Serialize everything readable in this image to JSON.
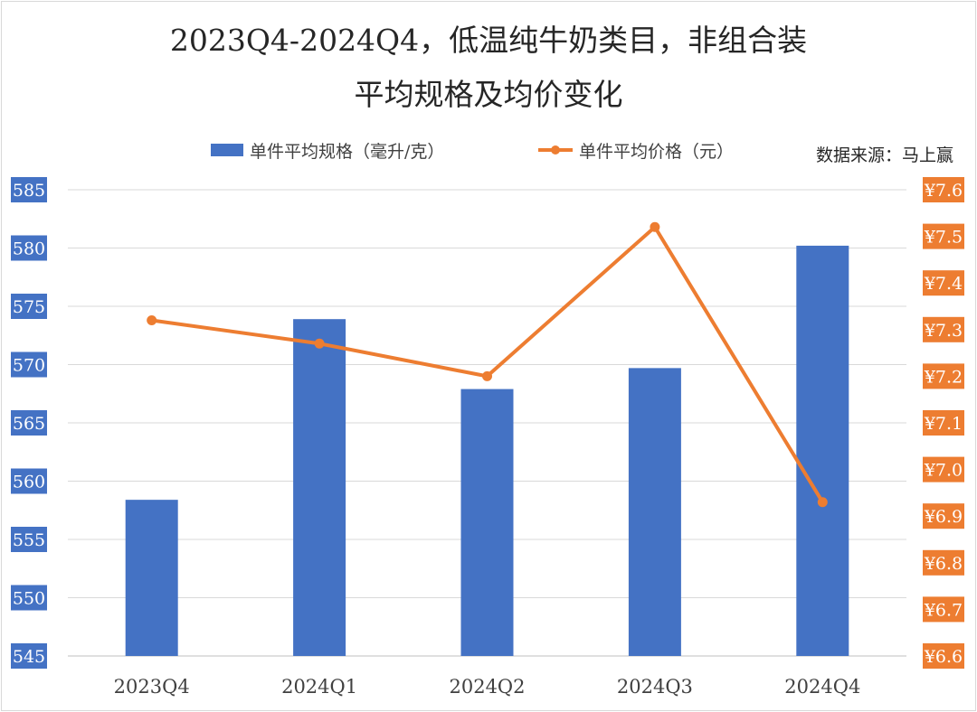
{
  "chart_data": {
    "type": "bar",
    "title_line1": "2023Q4-2024Q4，低温纯牛奶类目，非组合装",
    "title_line2": "平均规格及均价变化",
    "source": "数据来源：马上赢",
    "categories": [
      "2023Q4",
      "2024Q1",
      "2024Q2",
      "2024Q3",
      "2024Q4"
    ],
    "series": [
      {
        "name": "单件平均规格（毫升/克）",
        "type": "bar",
        "axis": "left",
        "color": "#4472C4",
        "values": [
          558.4,
          573.9,
          567.9,
          569.7,
          580.2
        ]
      },
      {
        "name": "单件平均价格（元）",
        "type": "line",
        "axis": "right",
        "color": "#ED7D31",
        "values": [
          7.32,
          7.27,
          7.2,
          7.52,
          6.93
        ]
      }
    ],
    "y_left": {
      "min": 545,
      "max": 585,
      "step": 5,
      "tick_labels": [
        "545",
        "550",
        "555",
        "560",
        "565",
        "570",
        "575",
        "580",
        "585"
      ],
      "label_bg": "#4472C4"
    },
    "y_right": {
      "min": 6.6,
      "max": 7.6,
      "step": 0.1,
      "tick_labels": [
        "¥6.6",
        "¥6.7",
        "¥6.8",
        "¥6.9",
        "¥7.0",
        "¥7.1",
        "¥7.2",
        "¥7.3",
        "¥7.4",
        "¥7.5",
        "¥7.6"
      ],
      "label_bg": "#ED7D31"
    },
    "grid": true,
    "legend_position": "top"
  }
}
